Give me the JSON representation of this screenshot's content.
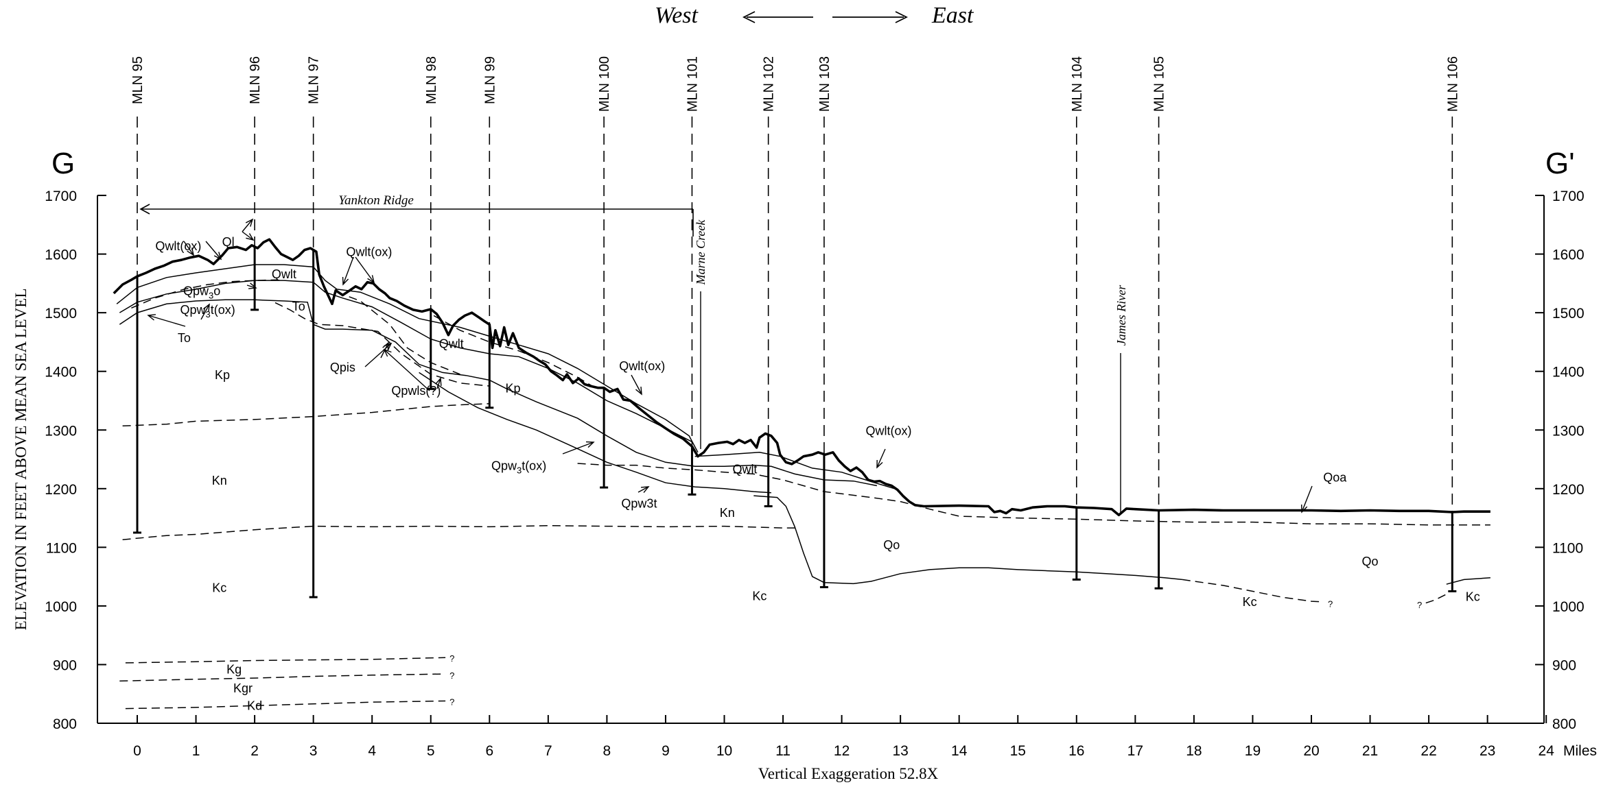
{
  "header": {
    "west": "West",
    "east": "East"
  },
  "endpoints": {
    "left": "G",
    "right": "G'"
  },
  "axes": {
    "y_title": "ELEVATION IN FEET ABOVE MEAN SEA LEVEL",
    "x_caption": "Vertical Exaggeration 52.8X",
    "x_unit": "Miles",
    "y_range": [
      800,
      1700
    ],
    "x_range": [
      -0.3,
      24
    ],
    "y_ticks": [
      800,
      900,
      1000,
      1100,
      1200,
      1300,
      1400,
      1500,
      1600,
      1700
    ],
    "x_ticks": [
      0,
      1,
      2,
      3,
      4,
      5,
      6,
      7,
      8,
      9,
      10,
      11,
      12,
      13,
      14,
      15,
      16,
      17,
      18,
      19,
      20,
      21,
      22,
      23,
      24
    ]
  },
  "features": {
    "ridge": "Yankton Ridge",
    "creek": "Marne Creek",
    "river": "James River"
  },
  "wells": [
    {
      "name": "MLN 95",
      "x": 0,
      "bottom": 1125
    },
    {
      "name": "MLN 96",
      "x": 2,
      "bottom": 1505
    },
    {
      "name": "MLN 97",
      "x": 3,
      "bottom": 1015
    },
    {
      "name": "MLN 98",
      "x": 5,
      "bottom": 1370
    },
    {
      "name": "MLN 99",
      "x": 6,
      "bottom": 1338
    },
    {
      "name": "MLN 100",
      "x": 7.95,
      "bottom": 1202
    },
    {
      "name": "MLN 101",
      "x": 9.45,
      "bottom": 1190
    },
    {
      "name": "MLN 102",
      "x": 10.75,
      "bottom": 1170
    },
    {
      "name": "MLN 103",
      "x": 11.7,
      "bottom": 1032
    },
    {
      "name": "MLN 104",
      "x": 16,
      "bottom": 1045
    },
    {
      "name": "MLN 105",
      "x": 17.4,
      "bottom": 1030
    },
    {
      "name": "MLN 106",
      "x": 22.4,
      "bottom": 1025
    }
  ],
  "unit_labels": [
    {
      "text": "Qwlt(ox)",
      "x": 0.7,
      "y": 1615
    },
    {
      "text": "Ql",
      "x": 1.55,
      "y": 1622
    },
    {
      "text": "Qwlt(ox)",
      "x": 3.95,
      "y": 1605
    },
    {
      "text": "Qwlt",
      "x": 2.5,
      "y": 1567
    },
    {
      "text": "To",
      "x": 2.75,
      "y": 1512
    },
    {
      "text": "To",
      "x": 0.8,
      "y": 1458
    },
    {
      "text": "Qwlt",
      "x": 5.35,
      "y": 1448
    },
    {
      "text": "Qpis",
      "x": 3.5,
      "y": 1408
    },
    {
      "text": "Qpwls(?)",
      "x": 4.75,
      "y": 1368
    },
    {
      "text": "Qwlt(ox)",
      "x": 8.6,
      "y": 1410
    },
    {
      "text": "Kp",
      "x": 1.45,
      "y": 1395
    },
    {
      "text": "Kp",
      "x": 6.4,
      "y": 1372
    },
    {
      "text": "Qwlt(ox)",
      "x": 12.8,
      "y": 1300
    },
    {
      "text": "Qwlt",
      "x": 10.35,
      "y": 1234
    },
    {
      "text": "Kn",
      "x": 1.4,
      "y": 1215
    },
    {
      "text": "Kn",
      "x": 10.05,
      "y": 1160
    },
    {
      "text": "Qpw3t",
      "x": 8.55,
      "y": 1176
    },
    {
      "text": "Qoa",
      "x": 20.4,
      "y": 1220
    },
    {
      "text": "Qo",
      "x": 12.85,
      "y": 1105
    },
    {
      "text": "Qo",
      "x": 21,
      "y": 1077
    },
    {
      "text": "Kc",
      "x": 1.4,
      "y": 1032
    },
    {
      "text": "Kc",
      "x": 10.6,
      "y": 1018
    },
    {
      "text": "Kc",
      "x": 18.95,
      "y": 1008
    },
    {
      "text": "Kc",
      "x": 22.75,
      "y": 1017
    },
    {
      "text": "Kg",
      "x": 1.65,
      "y": 893
    },
    {
      "text": "Kgr",
      "x": 1.8,
      "y": 861
    },
    {
      "text": "Kd",
      "x": 2,
      "y": 831
    }
  ],
  "sub_labels": [
    {
      "main": "Qpw",
      "sub": "3",
      "tail": "o",
      "x": 1.1,
      "y": 1538
    },
    {
      "main": "Qpw",
      "sub": "3",
      "tail": "t(ox)",
      "x": 1.2,
      "y": 1506
    },
    {
      "main": "Qpw",
      "sub": "3",
      "tail": "t(ox)",
      "x": 6.5,
      "y": 1240
    }
  ],
  "query_marks": [
    {
      "text": "?",
      "x": 5.32,
      "y": 911
    },
    {
      "text": "?",
      "x": 5.32,
      "y": 882
    },
    {
      "text": "?",
      "x": 5.32,
      "y": 837
    },
    {
      "text": "?",
      "x": 20.28,
      "y": 1004
    },
    {
      "text": "?",
      "x": 21.8,
      "y": 1002
    }
  ]
}
